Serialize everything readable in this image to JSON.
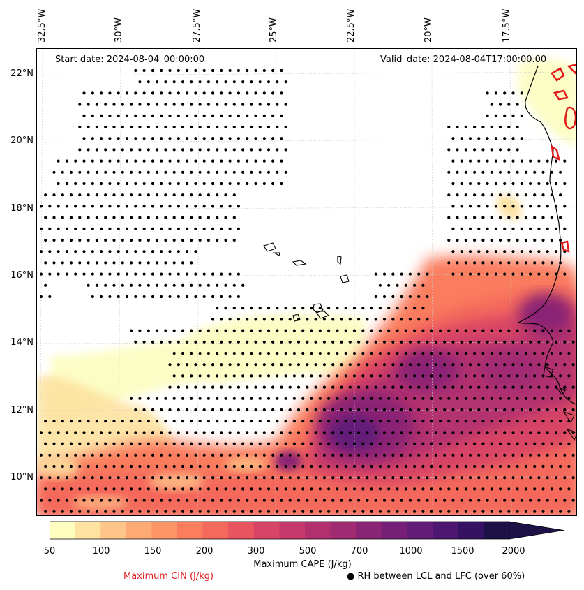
{
  "map": {
    "start_date": "Start date: 2024-08-04_00:00:00",
    "valid_date": "Valid_date: 2024-08-04T17:00:00.00",
    "lon_labels": [
      "32.5°W",
      "30°W",
      "27.5°W",
      "25°W",
      "22.5°W",
      "20°W",
      "17.5°W"
    ],
    "lat_labels": [
      "22°N",
      "20°N",
      "18°N",
      "16°N",
      "14°N",
      "12°N",
      "10°N"
    ],
    "lon_range": [
      -32.6,
      -15.6
    ],
    "lat_range": [
      8.9,
      22.8
    ]
  },
  "colorbar": {
    "ticks": [
      "50",
      "100",
      "150",
      "200",
      "300",
      "500",
      "700",
      "1000",
      "1500",
      "2000"
    ],
    "colors": [
      "#fcfdbf",
      "#fde2a0",
      "#fec589",
      "#feaa74",
      "#fd9567",
      "#fa7d5e",
      "#f4695c",
      "#e8545f",
      "#d84465",
      "#c6396c",
      "#b3306f",
      "#a02b73",
      "#8a2475",
      "#761f77",
      "#631c78",
      "#4d1670",
      "#361262",
      "#1d1148"
    ],
    "label": "Maximum CAPE (J/kg)"
  },
  "legend": {
    "cin_label": "Maximum CIN (J/kg)",
    "rh_label": "● RH between LCL and LFC (over 60%)"
  },
  "colors": {
    "cin_contour": "#e31a1c",
    "coast": "#000000"
  }
}
